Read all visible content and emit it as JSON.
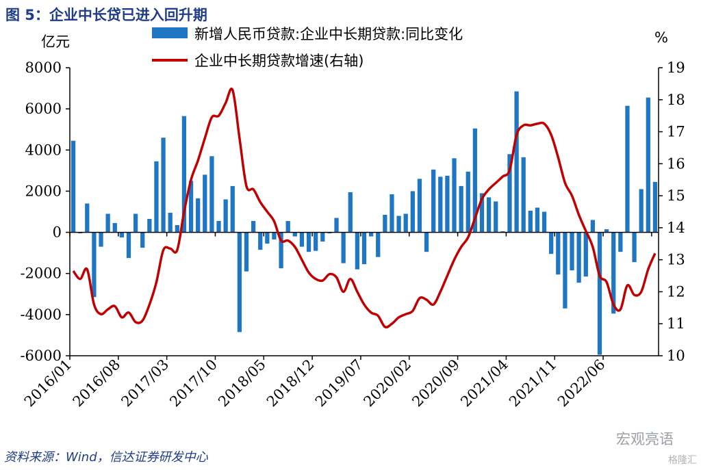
{
  "title": "图 5：企业中长贷已进入回升期",
  "source": "资料来源：Wind，信达证券研发中心",
  "watermark": "宏观亮语",
  "watermark2": "格隆汇",
  "chart_data": {
    "type": "bar+line",
    "left_unit": "亿元",
    "right_unit": "%",
    "left_axis": {
      "min": -6000,
      "max": 8000,
      "ticks": [
        8000,
        6000,
        4000,
        2000,
        0,
        -2000,
        -4000,
        -6000
      ]
    },
    "right_axis": {
      "min": 10,
      "max": 19,
      "ticks": [
        19,
        18,
        17,
        16,
        15,
        14,
        13,
        12,
        11,
        10
      ]
    },
    "x_tick_labels": [
      "2016/01",
      "2016/08",
      "2017/03",
      "2017/10",
      "2018/05",
      "2018/12",
      "2019/07",
      "2020/02",
      "2020/09",
      "2021/04",
      "2021/11",
      "2022/06"
    ],
    "x_tick_interval": 7,
    "colors": {
      "bar": "#1f77c4",
      "line": "#c00000",
      "axis": "#000000",
      "title": "#1f3c88"
    },
    "series": [
      {
        "name": "新增人民币贷款:企业中长期贷款:同比变化",
        "kind": "bar",
        "axis": "left",
        "values": [
          4450,
          -50,
          1400,
          -3150,
          -700,
          900,
          450,
          -250,
          -1250,
          900,
          -750,
          650,
          3450,
          4600,
          950,
          350,
          5650,
          2500,
          1650,
          2800,
          3700,
          550,
          1600,
          2250,
          -4850,
          -1900,
          550,
          -850,
          -550,
          -350,
          -1750,
          550,
          -200,
          -700,
          -950,
          -900,
          -450,
          -50,
          700,
          -1500,
          1950,
          -1800,
          -1550,
          -200,
          -1200,
          850,
          1850,
          800,
          900,
          2000,
          2600,
          -950,
          3050,
          2700,
          2750,
          3600,
          2250,
          2950,
          5050,
          1900,
          1700,
          1500,
          50,
          3800,
          6850,
          3650,
          1050,
          1200,
          1000,
          -1050,
          -2050,
          -3700,
          -1850,
          -2450,
          -2150,
          600,
          -5950,
          150,
          -3950,
          -950,
          6150,
          -1450,
          2100,
          6550,
          2450
        ]
      },
      {
        "name": "企业中长期贷款增速(右轴)",
        "kind": "line",
        "axis": "right",
        "values": [
          12.65,
          12.4,
          12.7,
          11.6,
          11.3,
          11.45,
          11.55,
          11.2,
          11.35,
          11.05,
          11.1,
          11.6,
          12.3,
          13.3,
          13.35,
          13.3,
          14.5,
          15.5,
          16.1,
          16.8,
          17.45,
          17.5,
          17.9,
          18.3,
          16.8,
          15.3,
          15.2,
          14.8,
          14.5,
          14.2,
          13.6,
          13.6,
          13.4,
          13.0,
          12.6,
          12.4,
          12.35,
          12.55,
          12.45,
          12.0,
          12.4,
          12.0,
          11.6,
          11.35,
          11.25,
          10.9,
          11.0,
          11.2,
          11.3,
          11.4,
          11.8,
          11.75,
          11.6,
          12.0,
          12.5,
          13.0,
          13.4,
          13.7,
          14.3,
          14.9,
          15.2,
          15.4,
          15.6,
          15.8,
          16.9,
          17.2,
          17.2,
          17.25,
          17.25,
          16.9,
          16.2,
          15.4,
          15.0,
          14.4,
          13.9,
          13.4,
          12.5,
          12.3,
          11.6,
          11.45,
          12.2,
          11.9,
          12.0,
          12.7,
          13.2
        ]
      }
    ]
  }
}
